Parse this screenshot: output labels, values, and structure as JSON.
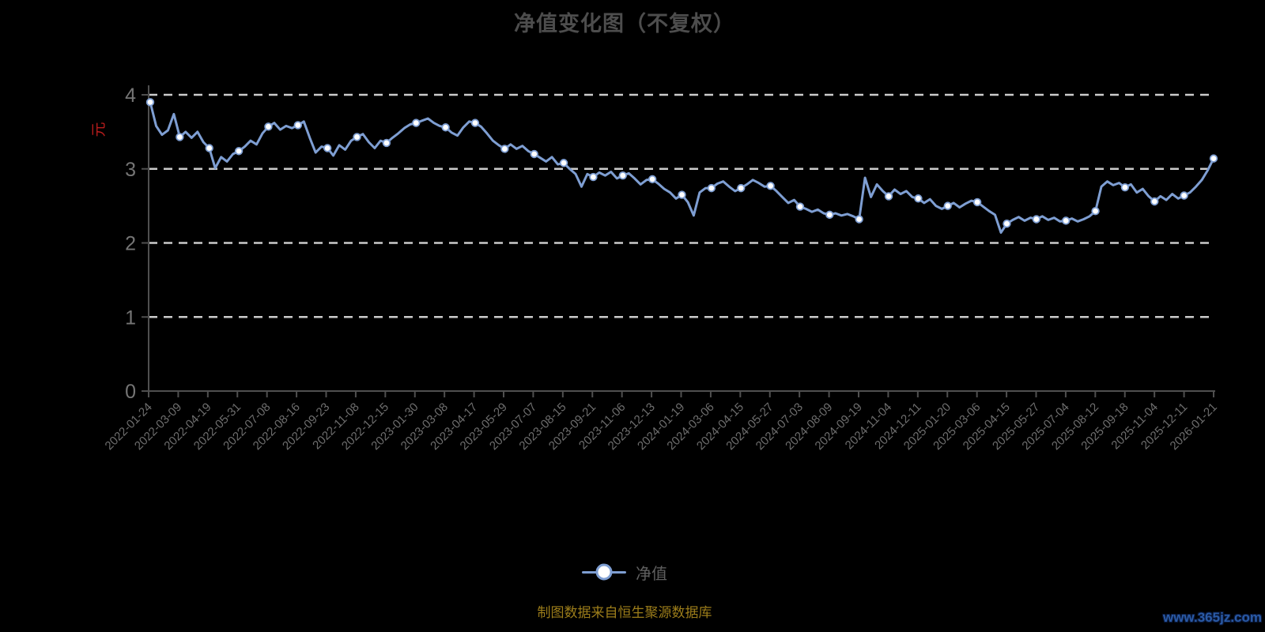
{
  "page": {
    "background": "#000000",
    "source_note": "制图数据来自恒生聚源数据库",
    "watermark": "www.365jz.com"
  },
  "chart_data": {
    "type": "line",
    "title": "净值变化图（不复权）",
    "xlabel": "",
    "ylabel": "元",
    "ylim": [
      0,
      4
    ],
    "yticks": [
      0,
      1,
      2,
      3,
      4
    ],
    "grid": "horizontal-dashed-white",
    "legend_position": "bottom-center",
    "categories": [
      "2022-01-24",
      "2022-03-09",
      "2022-04-19",
      "2022-05-31",
      "2022-07-08",
      "2022-08-16",
      "2022-09-23",
      "2022-11-08",
      "2022-12-15",
      "2023-01-30",
      "2023-03-08",
      "2023-04-17",
      "2023-05-29",
      "2023-07-07",
      "2023-08-15",
      "2023-09-21",
      "2023-11-06",
      "2023-12-13",
      "2024-01-19",
      "2024-03-06",
      "2024-04-15",
      "2024-05-27",
      "2024-07-03",
      "2024-08-09",
      "2024-09-19",
      "2024-11-04",
      "2024-12-11",
      "2025-01-20",
      "2025-03-06",
      "2025-04-15",
      "2025-05-27",
      "2025-07-04",
      "2025-08-12",
      "2025-09-18",
      "2025-11-04",
      "2025-12-11",
      "2026-01-21"
    ],
    "series": [
      {
        "name": "净值",
        "values": [
          3.9,
          3.43,
          3.28,
          3.24,
          3.57,
          3.59,
          3.28,
          3.43,
          3.35,
          3.62,
          3.56,
          3.62,
          3.27,
          3.2,
          3.08,
          2.89,
          2.91,
          2.86,
          2.65,
          2.74,
          2.74,
          2.77,
          2.49,
          2.38,
          2.32,
          2.63,
          2.6,
          2.5,
          2.55,
          2.26,
          2.32,
          2.3,
          2.43,
          2.75,
          2.56,
          2.64,
          3.14
        ],
        "dense_curve": [
          3.9,
          3.58,
          3.46,
          3.52,
          3.74,
          3.43,
          3.5,
          3.42,
          3.5,
          3.36,
          3.28,
          3.01,
          3.16,
          3.1,
          3.2,
          3.24,
          3.3,
          3.38,
          3.33,
          3.48,
          3.57,
          3.62,
          3.53,
          3.58,
          3.55,
          3.59,
          3.64,
          3.42,
          3.22,
          3.3,
          3.28,
          3.18,
          3.32,
          3.26,
          3.38,
          3.43,
          3.47,
          3.36,
          3.28,
          3.38,
          3.35,
          3.42,
          3.48,
          3.55,
          3.6,
          3.62,
          3.65,
          3.68,
          3.62,
          3.58,
          3.56,
          3.49,
          3.45,
          3.56,
          3.64,
          3.62,
          3.57,
          3.48,
          3.38,
          3.32,
          3.27,
          3.33,
          3.27,
          3.31,
          3.24,
          3.2,
          3.15,
          3.1,
          3.16,
          3.06,
          3.08,
          3.0,
          2.93,
          2.76,
          2.93,
          2.89,
          2.95,
          2.91,
          2.96,
          2.87,
          2.91,
          2.94,
          2.87,
          2.79,
          2.85,
          2.86,
          2.8,
          2.73,
          2.68,
          2.6,
          2.65,
          2.55,
          2.37,
          2.68,
          2.74,
          2.74,
          2.8,
          2.83,
          2.76,
          2.7,
          2.74,
          2.79,
          2.85,
          2.81,
          2.76,
          2.77,
          2.7,
          2.62,
          2.54,
          2.58,
          2.49,
          2.46,
          2.42,
          2.45,
          2.4,
          2.38,
          2.4,
          2.37,
          2.39,
          2.36,
          2.32,
          2.88,
          2.62,
          2.79,
          2.7,
          2.63,
          2.72,
          2.66,
          2.7,
          2.62,
          2.6,
          2.54,
          2.59,
          2.5,
          2.46,
          2.5,
          2.54,
          2.48,
          2.53,
          2.57,
          2.55,
          2.49,
          2.43,
          2.38,
          2.14,
          2.26,
          2.31,
          2.35,
          2.3,
          2.34,
          2.32,
          2.36,
          2.31,
          2.34,
          2.29,
          2.3,
          2.33,
          2.29,
          2.32,
          2.36,
          2.43,
          2.76,
          2.83,
          2.78,
          2.81,
          2.75,
          2.79,
          2.68,
          2.73,
          2.63,
          2.56,
          2.63,
          2.58,
          2.66,
          2.6,
          2.64,
          2.68,
          2.76,
          2.85,
          2.98,
          3.14
        ]
      }
    ],
    "colors": {
      "line": "#7e9ed2",
      "marker_fill": "#ffffff",
      "marker_stroke": "#7e9ed2",
      "grid": "#cbcbcb",
      "axis": "#4f4f4f",
      "y_tick_label": "#757575",
      "x_tick_label": "#6e6e6e",
      "title": "#4d4d4d",
      "ylabel": "#b71c1c",
      "legend_text": "#5f5f5f",
      "footer": "#9c7d1a",
      "watermark": "#2a5aa5"
    }
  }
}
